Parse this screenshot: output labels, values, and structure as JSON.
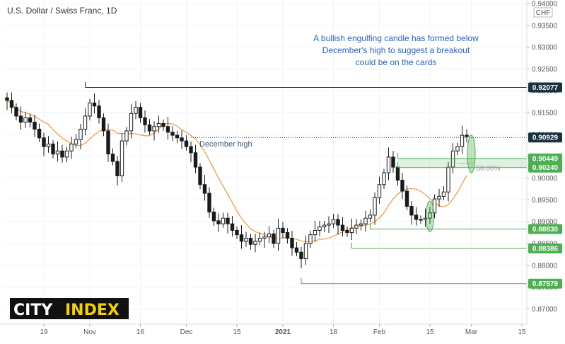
{
  "chart_data": {
    "type": "candlestick",
    "title": "U.S. Dollar / Swiss Franc, 1D",
    "currency_label": "CHF",
    "ylim": [
      0.8665,
      0.9408
    ],
    "y_ticks": [
      "0.94000",
      "0.93500",
      "0.93000",
      "0.92500",
      "0.92000",
      "0.91500",
      "0.91000",
      "0.90500",
      "0.90000",
      "0.89500",
      "0.89000",
      "0.88500",
      "0.88000",
      "0.87500",
      "0.87000"
    ],
    "y_tick_values": [
      0.94,
      0.935,
      0.93,
      0.925,
      0.92,
      0.915,
      0.91,
      0.905,
      0.9,
      0.895,
      0.89,
      0.885,
      0.88,
      0.875,
      0.87
    ],
    "x_ticks": [
      "19",
      "Nov",
      "16",
      "Dec",
      "15",
      "2021",
      "18",
      "Feb",
      "15",
      "Mar",
      "15"
    ],
    "x_tick_bars": [
      8,
      18,
      29,
      39,
      50,
      60,
      71,
      81,
      92,
      101,
      112
    ],
    "closes": [
      0.9178,
      0.9162,
      0.9142,
      0.9128,
      0.9138,
      0.9128,
      0.9112,
      0.9092,
      0.9072,
      0.9078,
      0.9055,
      0.9062,
      0.9048,
      0.9062,
      0.9078,
      0.9088,
      0.9112,
      0.9142,
      0.9172,
      0.9165,
      0.9138,
      0.9108,
      0.9055,
      0.9038,
      0.9005,
      0.9085,
      0.9108,
      0.9148,
      0.9162,
      0.9138,
      0.9122,
      0.9108,
      0.9118,
      0.9125,
      0.9118,
      0.9105,
      0.9098,
      0.9092,
      0.9085,
      0.9072,
      0.9058,
      0.9025,
      0.8985,
      0.8965,
      0.8922,
      0.8902,
      0.8895,
      0.8908,
      0.8895,
      0.888,
      0.887,
      0.8855,
      0.8862,
      0.8848,
      0.8855,
      0.8862,
      0.8865,
      0.8872,
      0.885,
      0.8885,
      0.8875,
      0.8862,
      0.884,
      0.883,
      0.8815,
      0.885,
      0.887,
      0.888,
      0.8888,
      0.8892,
      0.8895,
      0.8905,
      0.8892,
      0.888,
      0.8875,
      0.8885,
      0.8892,
      0.8895,
      0.8908,
      0.8915,
      0.8955,
      0.8985,
      0.9012,
      0.9048,
      0.9025,
      0.8995,
      0.897,
      0.8935,
      0.8915,
      0.8905,
      0.8905,
      0.8908,
      0.892,
      0.8952,
      0.8958,
      0.8968,
      0.9025,
      0.9062,
      0.9072,
      0.9098,
      0.9095
    ],
    "annotation": "A bullish engulfing candle has formed below December's high to suggest a breakout could be on the cards",
    "levels": [
      {
        "value": 0.92077,
        "label": "0.92077",
        "color": "#19323f"
      },
      {
        "value": 0.90929,
        "label": "0.90929",
        "color": "#19323f"
      },
      {
        "value": 0.90449,
        "label": "0.90449",
        "color": "#4caf50"
      },
      {
        "value": 0.9024,
        "label": "0.90240",
        "color": "#4caf50"
      },
      {
        "value": 0.8883,
        "label": "0.88830",
        "color": "#4caf50"
      },
      {
        "value": 0.88386,
        "label": "0.88386",
        "color": "#4caf50"
      },
      {
        "value": 0.87579,
        "label": "0.87579",
        "color": "#4caf50"
      }
    ],
    "level_text": "December high",
    "fib_text": "50.00%",
    "colors": {
      "candle": "#1a1a1a",
      "ma": "#f0a050",
      "green": "#4caf50",
      "navy": "#19323f",
      "annotation": "#2a62d8"
    }
  },
  "logo": {
    "part1": "CITY",
    "part2": "INDEX",
    "color1": "#ffffff",
    "color2": "#f5d000",
    "bg": "#111111"
  }
}
